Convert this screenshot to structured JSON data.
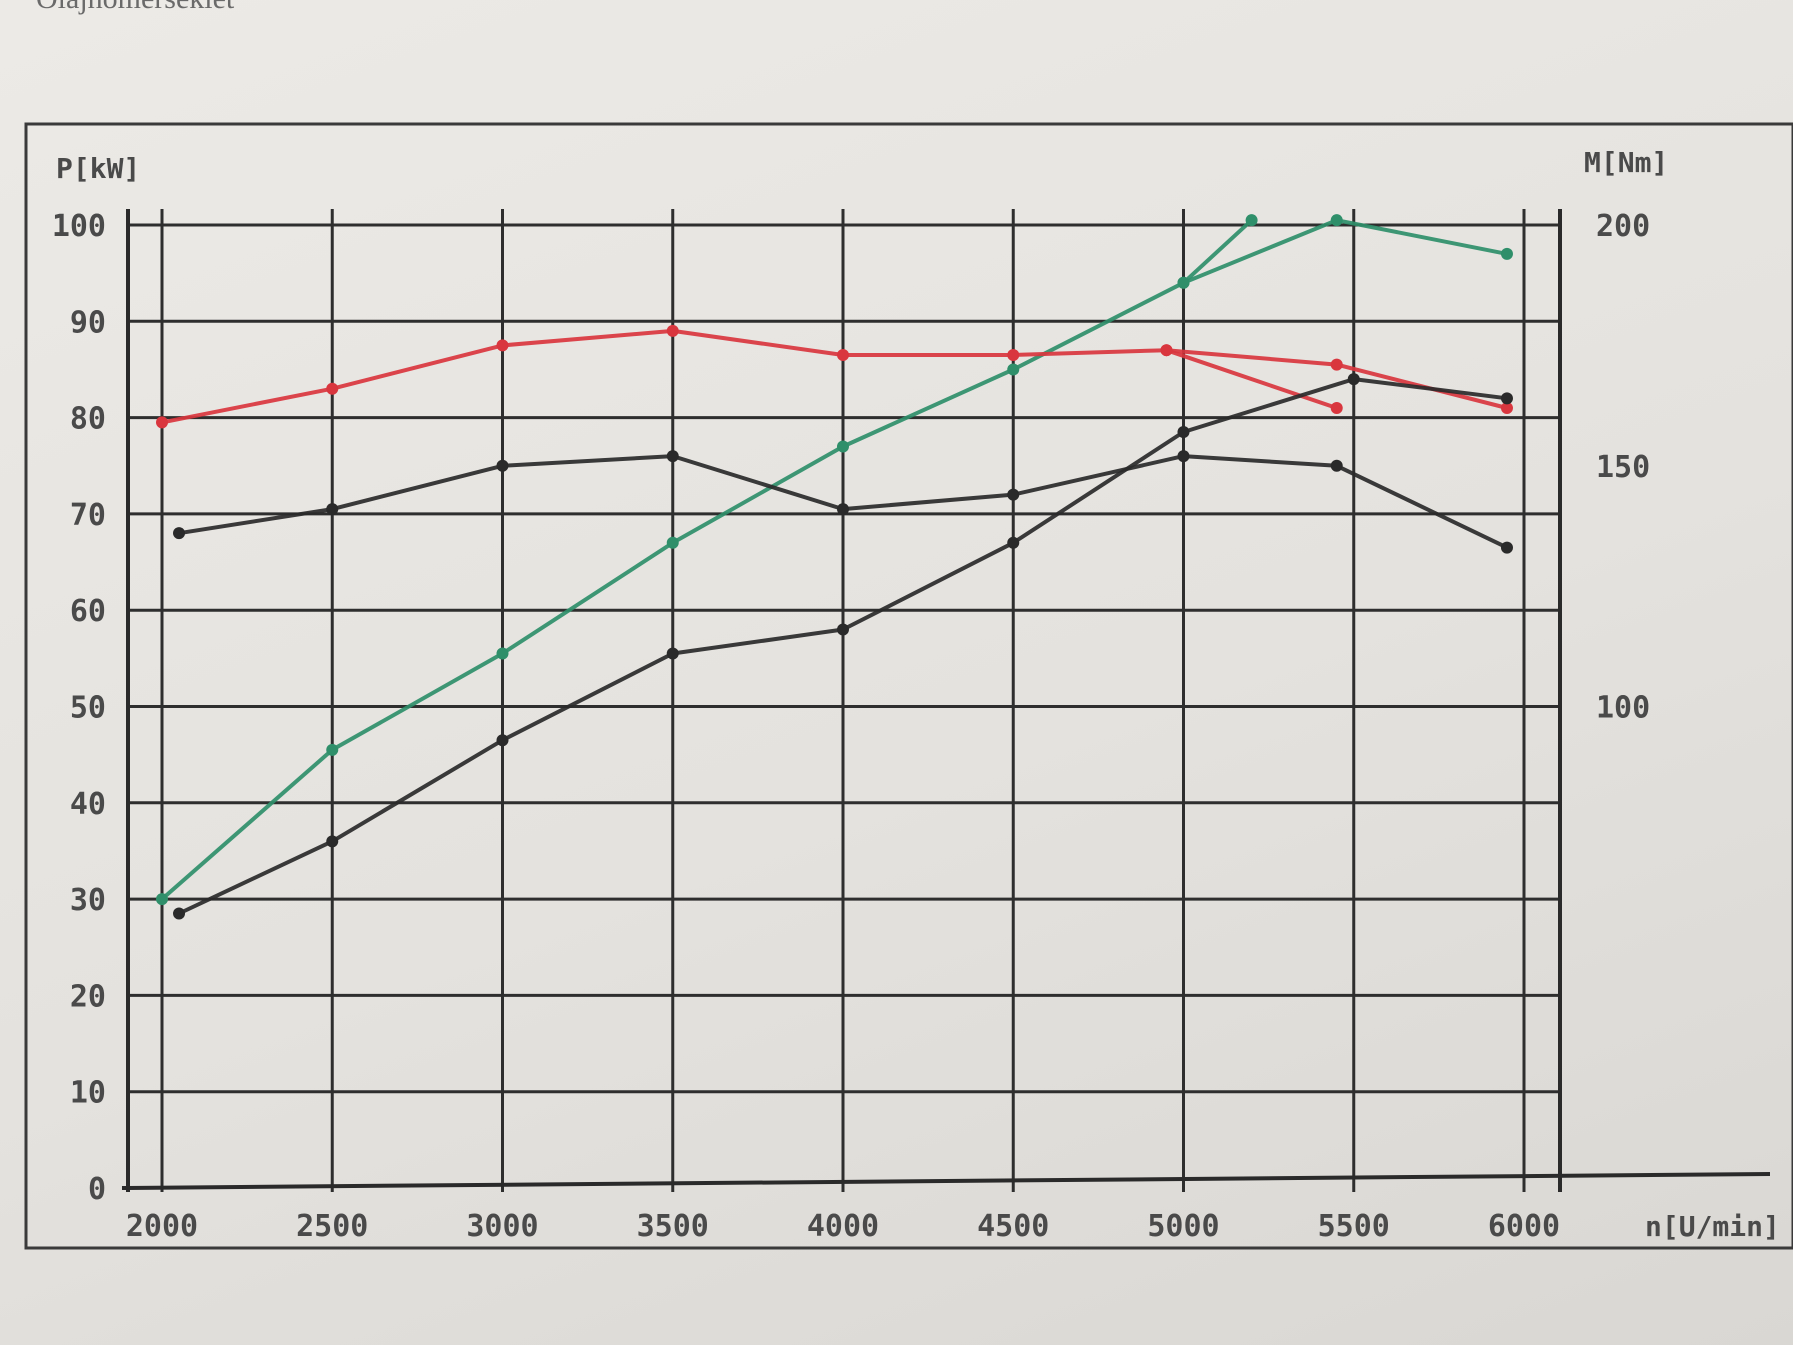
{
  "header_fragment": "Olajhőmérséklet",
  "chart_data": {
    "type": "line",
    "x_axis": {
      "label": "n[U/min]",
      "ticks": [
        2000,
        2500,
        3000,
        3500,
        4000,
        4500,
        5000,
        5500,
        6000
      ],
      "range": [
        2000,
        6000
      ]
    },
    "y_left": {
      "label": "P[kW]",
      "ticks": [
        0,
        10,
        20,
        30,
        40,
        50,
        60,
        70,
        80,
        90,
        100
      ],
      "range": [
        0,
        100
      ]
    },
    "y_right": {
      "label": "M[Nm]",
      "ticks": [
        100,
        150,
        200
      ],
      "range": [
        0,
        200
      ]
    },
    "grid": true,
    "series": [
      {
        "axis": "left",
        "color": "#2f8f6a",
        "x": [
          2000,
          2500,
          3000,
          3500,
          4000,
          4500,
          5000,
          5200
        ],
        "y": [
          30,
          45.5,
          55.5,
          67,
          77,
          85,
          94,
          100.5
        ]
      },
      {
        "axis": "left",
        "color": "#2f8f6a",
        "x": [
          5000,
          5450,
          5950
        ],
        "y": [
          94,
          100.5,
          97
        ]
      },
      {
        "axis": "left",
        "color": "#d9363e",
        "x": [
          2000,
          2500,
          3000,
          3500,
          4000,
          4500,
          4950,
          5450
        ],
        "y": [
          79.5,
          83,
          87.5,
          89,
          86.5,
          86.5,
          87,
          81
        ]
      },
      {
        "axis": "left",
        "color": "#d9363e",
        "x": [
          4950,
          5450,
          5950
        ],
        "y": [
          87,
          85.5,
          81
        ]
      },
      {
        "axis": "left",
        "color": "#2a2a2a",
        "x": [
          2050,
          2500,
          3000,
          3500,
          4000,
          4500,
          5000,
          5500,
          5950
        ],
        "y": [
          28.5,
          36,
          46.5,
          55.5,
          58,
          67,
          78.5,
          84,
          82
        ]
      },
      {
        "axis": "left",
        "color": "#2a2a2a",
        "x": [
          2050,
          2500,
          3000,
          3500,
          4000,
          4500,
          5000,
          5450,
          5950
        ],
        "y": [
          68,
          70.5,
          75,
          76,
          70.5,
          72,
          76,
          75,
          66.5
        ]
      }
    ]
  }
}
